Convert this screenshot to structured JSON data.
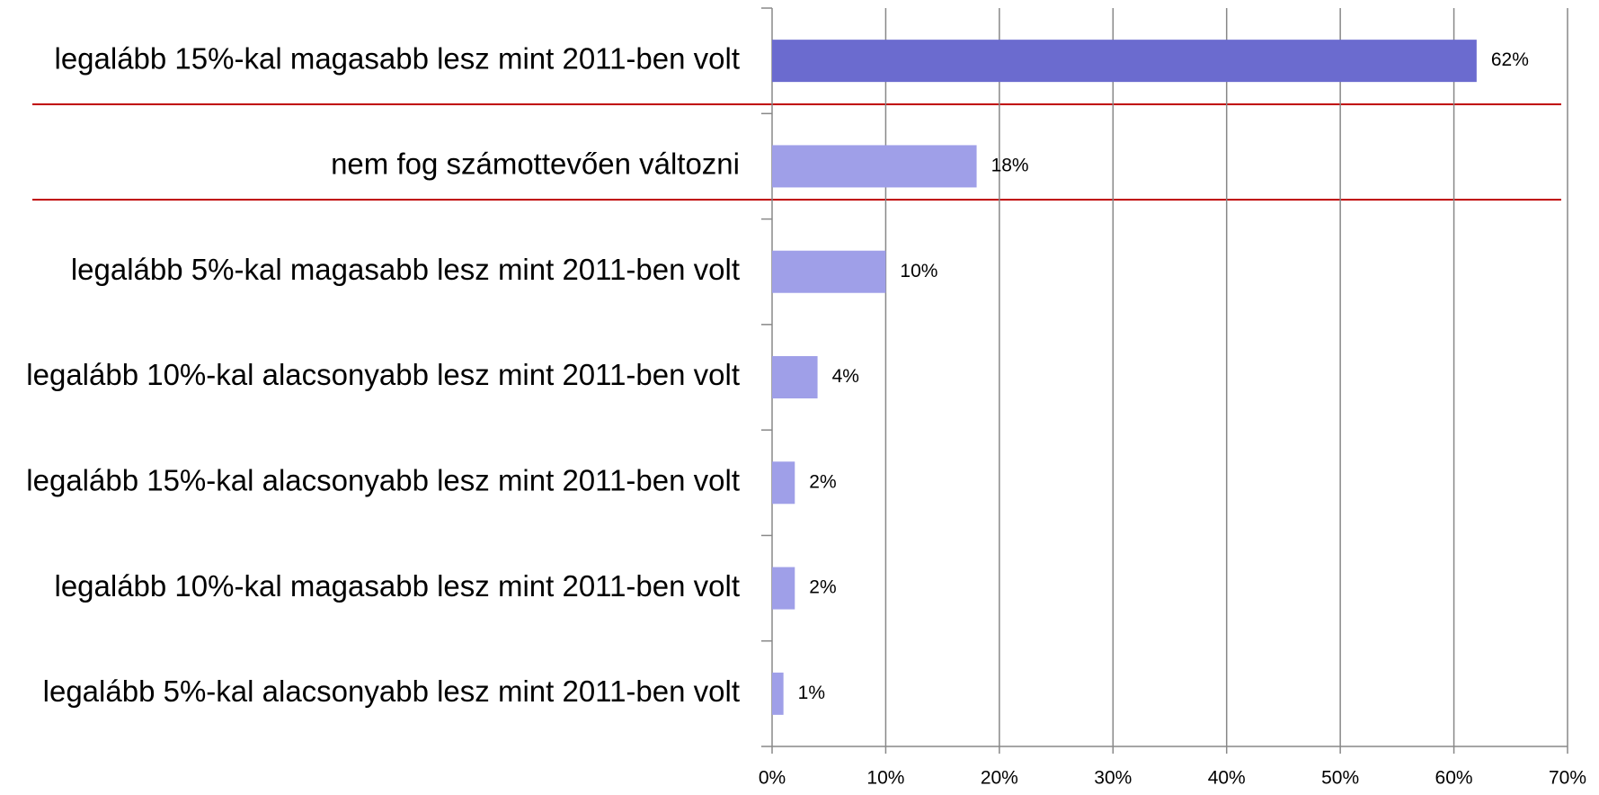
{
  "chart_data": {
    "type": "bar",
    "orientation": "horizontal",
    "categories": [
      "legalább 15%-kal magasabb lesz mint 2011-ben volt",
      "nem fog számottevően változni",
      "legalább 5%-kal magasabb lesz mint 2011-ben volt",
      "legalább 10%-kal alacsonyabb lesz mint 2011-ben volt",
      "legalább 15%-kal alacsonyabb lesz mint 2011-ben volt",
      "legalább 10%-kal magasabb lesz mint 2011-ben volt",
      "legalább 5%-kal alacsonyabb lesz mint 2011-ben volt"
    ],
    "values": [
      62,
      18,
      10,
      4,
      2,
      2,
      1
    ],
    "value_labels": [
      "62%",
      "18%",
      "10%",
      "4%",
      "2%",
      "2%",
      "1%"
    ],
    "colors": [
      "#6b6bcf",
      "#9f9fe8",
      "#9f9fe8",
      "#9f9fe8",
      "#9f9fe8",
      "#9f9fe8",
      "#9f9fe8"
    ],
    "xlim": [
      0,
      70
    ],
    "xticks": [
      {
        "value": 0,
        "label": "0%"
      },
      {
        "value": 10,
        "label": "10%"
      },
      {
        "value": 20,
        "label": "20%"
      },
      {
        "value": 30,
        "label": "30%"
      },
      {
        "value": 40,
        "label": "40%"
      },
      {
        "value": 50,
        "label": "50%"
      },
      {
        "value": 60,
        "label": "60%"
      },
      {
        "value": 70,
        "label": "70%"
      }
    ],
    "grid": true
  }
}
